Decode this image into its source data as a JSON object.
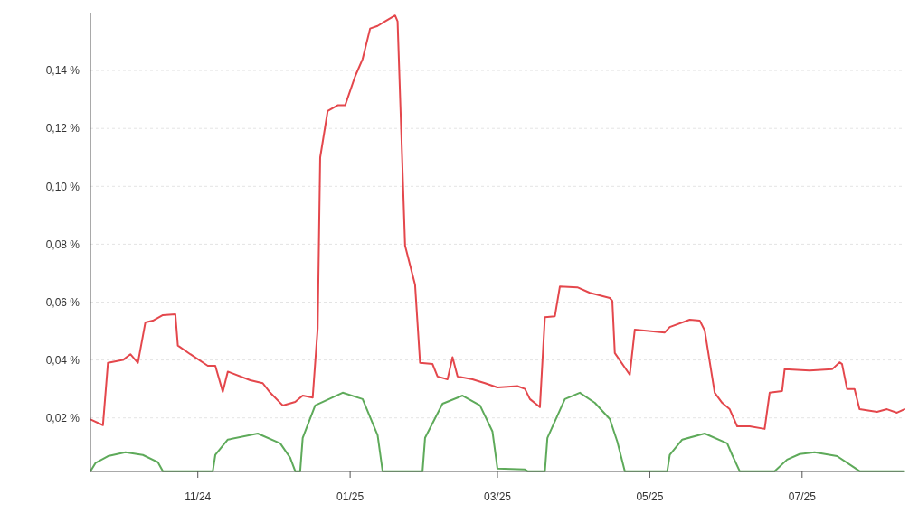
{
  "chart_data": {
    "type": "line",
    "xlim": [
      "2024-09-19",
      "2025-08-11"
    ],
    "ylim": [
      0.0015,
      0.16
    ],
    "xticks": [
      {
        "value": "2024-11-01",
        "label": "11/24"
      },
      {
        "value": "2025-01-01",
        "label": "01/25"
      },
      {
        "value": "2025-03-01",
        "label": "03/25"
      },
      {
        "value": "2025-05-01",
        "label": "05/25"
      },
      {
        "value": "2025-07-01",
        "label": "07/25"
      }
    ],
    "yticks": [
      {
        "value": 0.02,
        "label": "0,02 %"
      },
      {
        "value": 0.04,
        "label": "0,04 %"
      },
      {
        "value": 0.06,
        "label": "0,06 %"
      },
      {
        "value": 0.08,
        "label": "0,08 %"
      },
      {
        "value": 0.1,
        "label": "0,10 %"
      },
      {
        "value": 0.12,
        "label": "0,12 %"
      },
      {
        "value": 0.14,
        "label": "0,14 %"
      }
    ],
    "grid": "y",
    "line_style": "solid",
    "series": [
      {
        "color": "#e4474c",
        "x": [
          "2024-09-19",
          "2024-09-24",
          "2024-09-26",
          "2024-10-02",
          "2024-10-05",
          "2024-10-08",
          "2024-10-11",
          "2024-10-14",
          "2024-10-18",
          "2024-10-23",
          "2024-10-24",
          "2024-10-29",
          "2024-11-05",
          "2024-11-08",
          "2024-11-11",
          "2024-11-13",
          "2024-11-22",
          "2024-11-27",
          "2024-11-30",
          "2024-12-05",
          "2024-12-10",
          "2024-12-13",
          "2024-12-17",
          "2024-12-19",
          "2024-12-20",
          "2024-12-23",
          "2024-12-27",
          "2024-12-30",
          "2025-01-03",
          "2025-01-06",
          "2025-01-09",
          "2025-01-12",
          "2025-01-15",
          "2025-01-19",
          "2025-01-20",
          "2025-01-23",
          "2025-01-27",
          "2025-01-29",
          "2025-02-03",
          "2025-02-05",
          "2025-02-09",
          "2025-02-11",
          "2025-02-13",
          "2025-02-19",
          "2025-02-24",
          "2025-03-01",
          "2025-03-09",
          "2025-03-12",
          "2025-03-14",
          "2025-03-18",
          "2025-03-20",
          "2025-03-24",
          "2025-03-26",
          "2025-04-02",
          "2025-04-07",
          "2025-04-15",
          "2025-04-16",
          "2025-04-17",
          "2025-04-23",
          "2025-04-25",
          "2025-05-07",
          "2025-05-09",
          "2025-05-17",
          "2025-05-21",
          "2025-05-23",
          "2025-05-27",
          "2025-05-30",
          "2025-06-02",
          "2025-06-05",
          "2025-06-10",
          "2025-06-16",
          "2025-06-18",
          "2025-06-23",
          "2025-06-24",
          "2025-07-04",
          "2025-07-13",
          "2025-07-16",
          "2025-07-17",
          "2025-07-19",
          "2025-07-22",
          "2025-07-24",
          "2025-07-31",
          "2025-08-04",
          "2025-08-08",
          "2025-08-11"
        ],
        "values": [
          0.0195,
          0.0175,
          0.039,
          0.04,
          0.042,
          0.039,
          0.053,
          0.0536,
          0.0555,
          0.0558,
          0.045,
          0.042,
          0.038,
          0.038,
          0.029,
          0.036,
          0.033,
          0.032,
          0.0287,
          0.0243,
          0.0255,
          0.0277,
          0.027,
          0.051,
          0.11,
          0.126,
          0.128,
          0.128,
          0.138,
          0.144,
          0.1545,
          0.1554,
          0.157,
          0.159,
          0.157,
          0.0795,
          0.066,
          0.039,
          0.0386,
          0.0343,
          0.0333,
          0.041,
          0.0343,
          0.0333,
          0.032,
          0.0305,
          0.031,
          0.03,
          0.0265,
          0.0237,
          0.0548,
          0.0551,
          0.0654,
          0.0651,
          0.0632,
          0.0614,
          0.0604,
          0.0424,
          0.0349,
          0.0505,
          0.0495,
          0.0514,
          0.0539,
          0.0536,
          0.0502,
          0.0287,
          0.0252,
          0.023,
          0.0171,
          0.0171,
          0.0162,
          0.0287,
          0.0293,
          0.0368,
          0.0364,
          0.0368,
          0.0392,
          0.0386,
          0.03,
          0.03,
          0.023,
          0.0221,
          0.023,
          0.0218,
          0.023
        ]
      },
      {
        "color": "#5eaa5a",
        "x": [
          "2024-09-19",
          "2024-09-21",
          "2024-09-26",
          "2024-10-03",
          "2024-10-10",
          "2024-10-16",
          "2024-10-18",
          "2024-11-07",
          "2024-11-08",
          "2024-11-13",
          "2024-11-25",
          "2024-12-04",
          "2024-12-08",
          "2024-12-10",
          "2024-12-12",
          "2024-12-13",
          "2024-12-18",
          "2024-12-29",
          "2025-01-06",
          "2025-01-12",
          "2025-01-14",
          "2025-01-30",
          "2025-01-31",
          "2025-02-07",
          "2025-02-15",
          "2025-02-22",
          "2025-02-27",
          "2025-03-01",
          "2025-03-12",
          "2025-03-13",
          "2025-03-20",
          "2025-03-21",
          "2025-03-28",
          "2025-04-03",
          "2025-04-09",
          "2025-04-15",
          "2025-04-18",
          "2025-04-21",
          "2025-05-08",
          "2025-05-09",
          "2025-05-14",
          "2025-05-23",
          "2025-06-01",
          "2025-06-03",
          "2025-06-06",
          "2025-06-20",
          "2025-06-25",
          "2025-06-30",
          "2025-07-06",
          "2025-07-15",
          "2025-07-22",
          "2025-07-24",
          "2025-08-11"
        ],
        "values": [
          0.0016,
          0.0044,
          0.0068,
          0.0081,
          0.0072,
          0.0047,
          0.0016,
          0.0016,
          0.0072,
          0.0125,
          0.0146,
          0.0112,
          0.0062,
          0.0016,
          0.0016,
          0.0131,
          0.0243,
          0.0287,
          0.0265,
          0.014,
          0.0016,
          0.0016,
          0.0131,
          0.0249,
          0.0277,
          0.0243,
          0.0153,
          0.0025,
          0.0022,
          0.0016,
          0.0016,
          0.0131,
          0.0265,
          0.0287,
          0.0252,
          0.0196,
          0.0118,
          0.0016,
          0.0016,
          0.0072,
          0.0125,
          0.0146,
          0.0112,
          0.0072,
          0.0016,
          0.0016,
          0.0056,
          0.0075,
          0.0081,
          0.0068,
          0.0028,
          0.0016,
          0.0016
        ]
      }
    ]
  }
}
